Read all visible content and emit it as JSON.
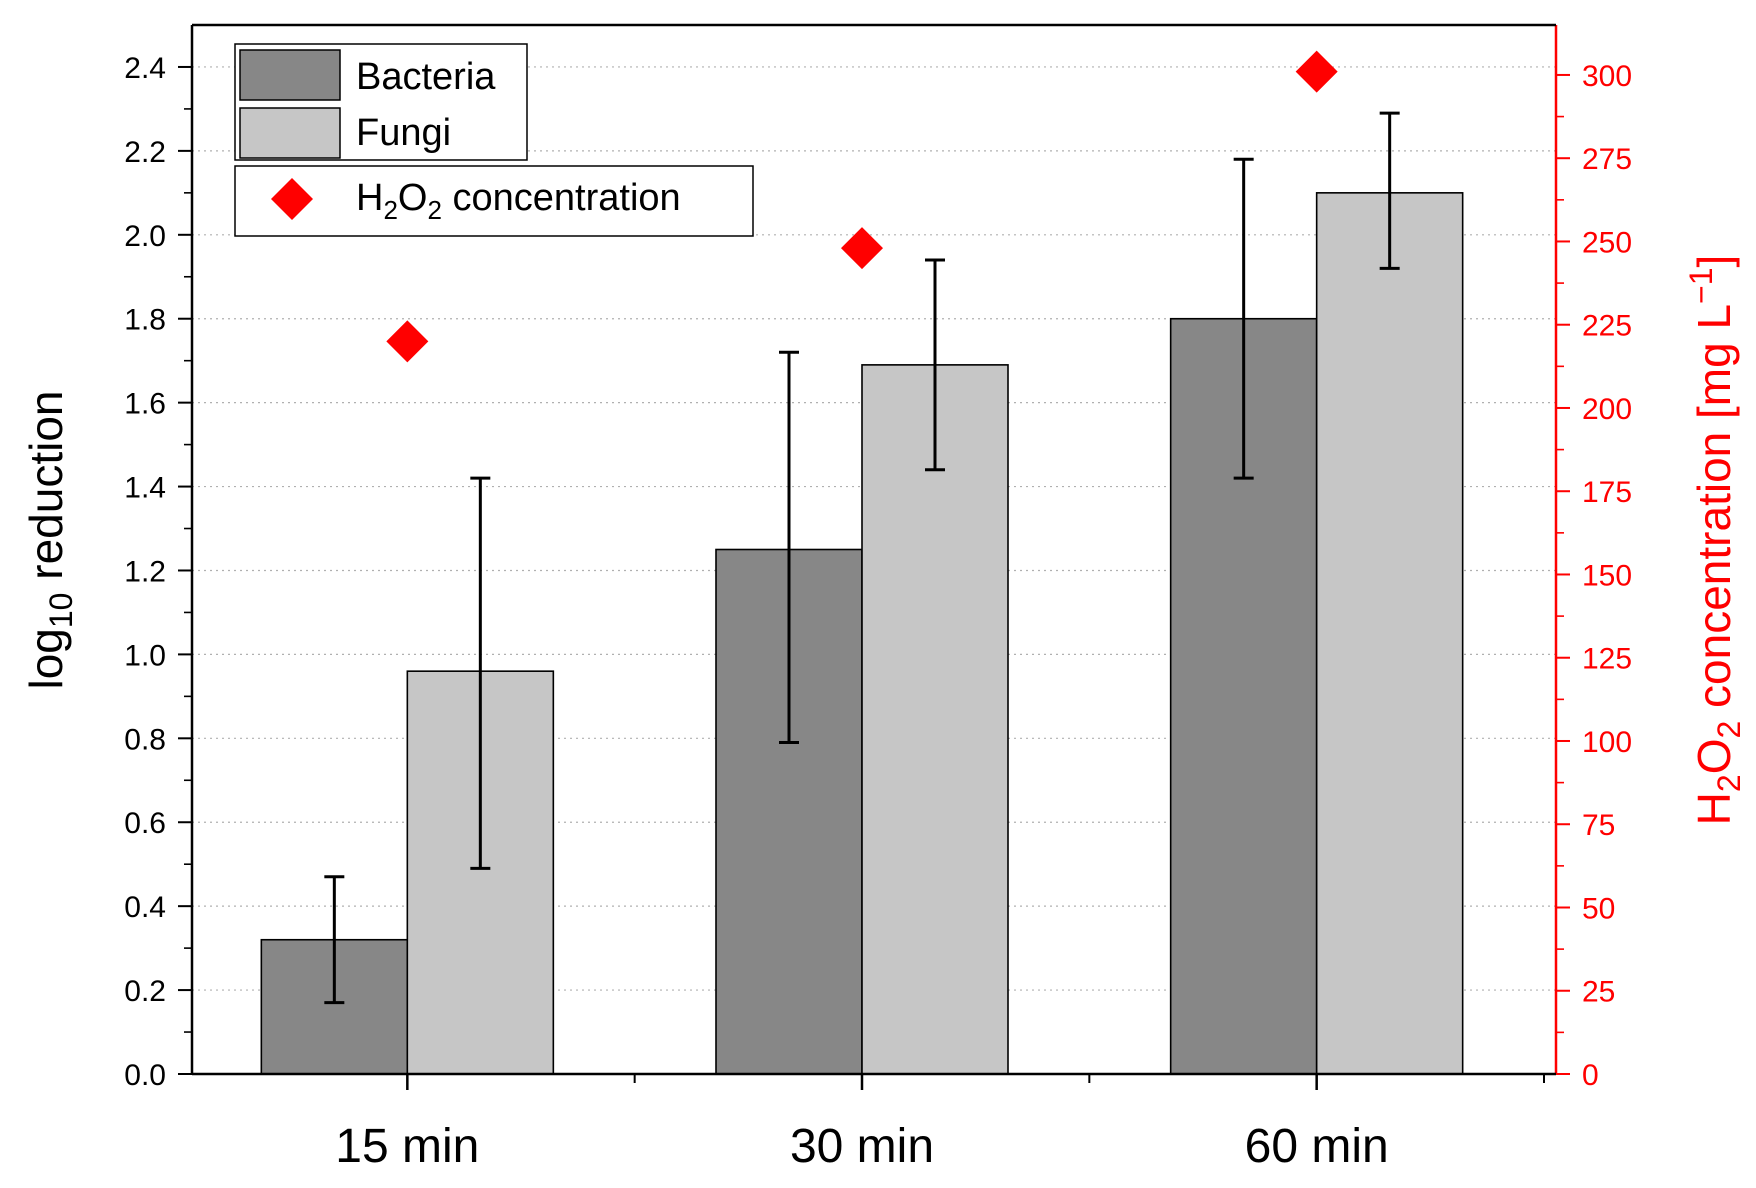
{
  "chart_data": {
    "type": "bar",
    "categories": [
      "15 min",
      "30 min",
      "60 min"
    ],
    "series": [
      {
        "name": "Bacteria",
        "axis": "left",
        "color": "#878787",
        "values": [
          0.32,
          1.25,
          1.8
        ],
        "error_low": [
          0.17,
          0.79,
          1.42
        ],
        "error_high": [
          0.47,
          1.72,
          2.18
        ]
      },
      {
        "name": "Fungi",
        "axis": "left",
        "color": "#c6c6c6",
        "values": [
          0.96,
          1.69,
          2.1
        ],
        "error_low": [
          0.49,
          1.44,
          1.92
        ],
        "error_high": [
          1.42,
          1.94,
          2.29
        ]
      },
      {
        "name": "H2O2 concentration",
        "legend_label": "H2O2 concentration",
        "type": "scatter",
        "marker": "diamond",
        "axis": "right",
        "color": "#ff0000",
        "values": [
          220,
          248,
          301
        ]
      }
    ],
    "y_left": {
      "label": "log10 reduction",
      "ylim": [
        0,
        2.5
      ],
      "ticks": [
        "0.0",
        "0.2",
        "0.4",
        "0.6",
        "0.8",
        "1.0",
        "1.2",
        "1.4",
        "1.6",
        "1.8",
        "2.0",
        "2.2",
        "2.4"
      ]
    },
    "y_right": {
      "label": "H2O2 concentration [mg L−1]",
      "ylim": [
        0,
        315
      ],
      "color": "#ff0000",
      "ticks": [
        "0",
        "25",
        "50",
        "75",
        "100",
        "125",
        "150",
        "175",
        "200",
        "225",
        "250",
        "275",
        "300"
      ]
    },
    "xlabel": "",
    "grid": "horizontal dotted",
    "legend_position": "top-left"
  }
}
